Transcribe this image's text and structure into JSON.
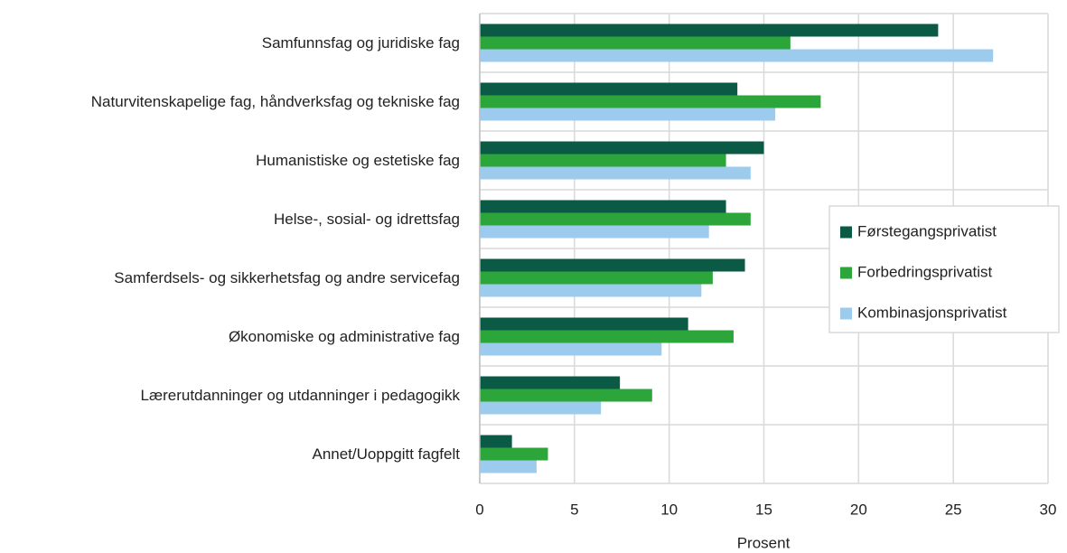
{
  "chart_data": {
    "type": "hbar",
    "categories": [
      "Samfunnsfag og juridiske fag",
      "Naturvitenskapelige fag, håndverksfag og tekniske fag",
      "Humanistiske og estetiske fag",
      "Helse-, sosial- og idrettsfag",
      "Samferdsels- og sikkerhetsfag og andre servicefag",
      "Økonomiske og administrative fag",
      "Lærerutdanninger og utdanninger i pedagogikk",
      "Annet/Uoppgitt fagfelt"
    ],
    "series": [
      {
        "name": "Førstegangsprivatist",
        "color": "#0b5a45",
        "values": [
          24.2,
          13.6,
          15.0,
          13.0,
          14.0,
          11.0,
          7.4,
          1.7
        ]
      },
      {
        "name": "Forbedringsprivatist",
        "color": "#2ca53a",
        "values": [
          16.4,
          18.0,
          13.0,
          14.3,
          12.3,
          13.4,
          9.1,
          3.6
        ]
      },
      {
        "name": "Kombinasjonsprivatist",
        "color": "#9ccbee",
        "values": [
          27.1,
          15.6,
          14.3,
          12.1,
          11.7,
          9.6,
          6.4,
          3.0
        ]
      }
    ],
    "xlabel": "Prosent",
    "xlim": [
      0,
      30
    ],
    "xticks": [
      0,
      5,
      10,
      15,
      20,
      25,
      30
    ],
    "grid": true,
    "legend": "right"
  }
}
